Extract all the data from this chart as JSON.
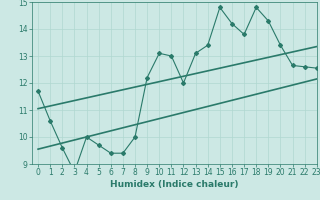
{
  "title": "",
  "xlabel": "Humidex (Indice chaleur)",
  "ylabel": "",
  "bg_color": "#cce8e4",
  "grid_color": "#b0d8d0",
  "line_color": "#2a7a6a",
  "tick_color": "#2a7a6a",
  "xlim": [
    -0.5,
    23
  ],
  "ylim": [
    9,
    15
  ],
  "xticks": [
    0,
    1,
    2,
    3,
    4,
    5,
    6,
    7,
    8,
    9,
    10,
    11,
    12,
    13,
    14,
    15,
    16,
    17,
    18,
    19,
    20,
    21,
    22,
    23
  ],
  "yticks": [
    9,
    10,
    11,
    12,
    13,
    14,
    15
  ],
  "scatter_x": [
    0,
    1,
    2,
    3,
    4,
    5,
    6,
    7,
    8,
    9,
    10,
    11,
    12,
    13,
    14,
    15,
    16,
    17,
    18,
    19,
    20,
    21,
    22,
    23
  ],
  "scatter_y": [
    11.7,
    10.6,
    9.6,
    8.7,
    10.0,
    9.7,
    9.4,
    9.4,
    10.0,
    12.2,
    13.1,
    13.0,
    12.0,
    13.1,
    13.4,
    14.8,
    14.2,
    13.8,
    14.8,
    14.3,
    13.4,
    12.65,
    12.6,
    12.55
  ],
  "trend1_x": [
    0,
    23
  ],
  "trend1_y": [
    11.05,
    13.35
  ],
  "trend2_x": [
    0,
    23
  ],
  "trend2_y": [
    9.55,
    12.15
  ]
}
